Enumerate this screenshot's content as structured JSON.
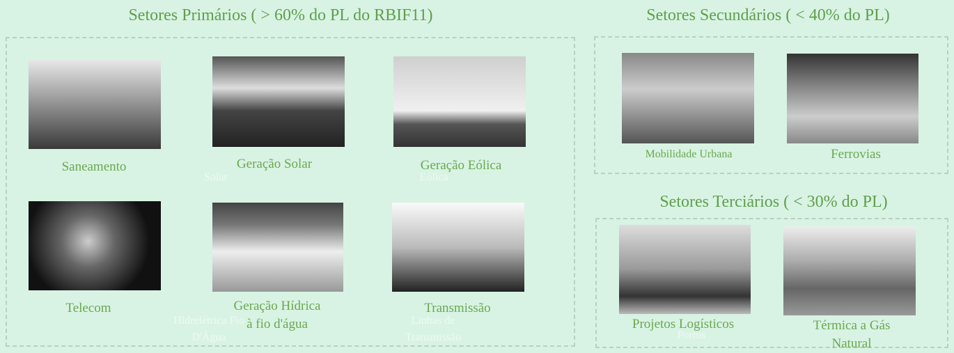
{
  "primary": {
    "title": "Setores Primários ( > 60% do PL do RBIF11)",
    "items": [
      "Saneamento",
      "Geração Solar",
      "Geração Eólica",
      "Telecom",
      "Geração Hídrica à fio d'água",
      "Transmissão"
    ]
  },
  "secondary": {
    "title": "Setores Secundários ( < 40% do PL)",
    "items": [
      "Mobilidade Urbana",
      "Ferrovias"
    ]
  },
  "tertiary": {
    "title": "Setores Terciários ( < 30% do PL)",
    "items": [
      "Projetos Logísticos",
      "Térmica a Gás Natural"
    ]
  },
  "overlays": [
    "Solar",
    "Eólica",
    "Hidrelétrica Fio D'Água",
    "Linhas de Transmissão",
    "Portos"
  ]
}
